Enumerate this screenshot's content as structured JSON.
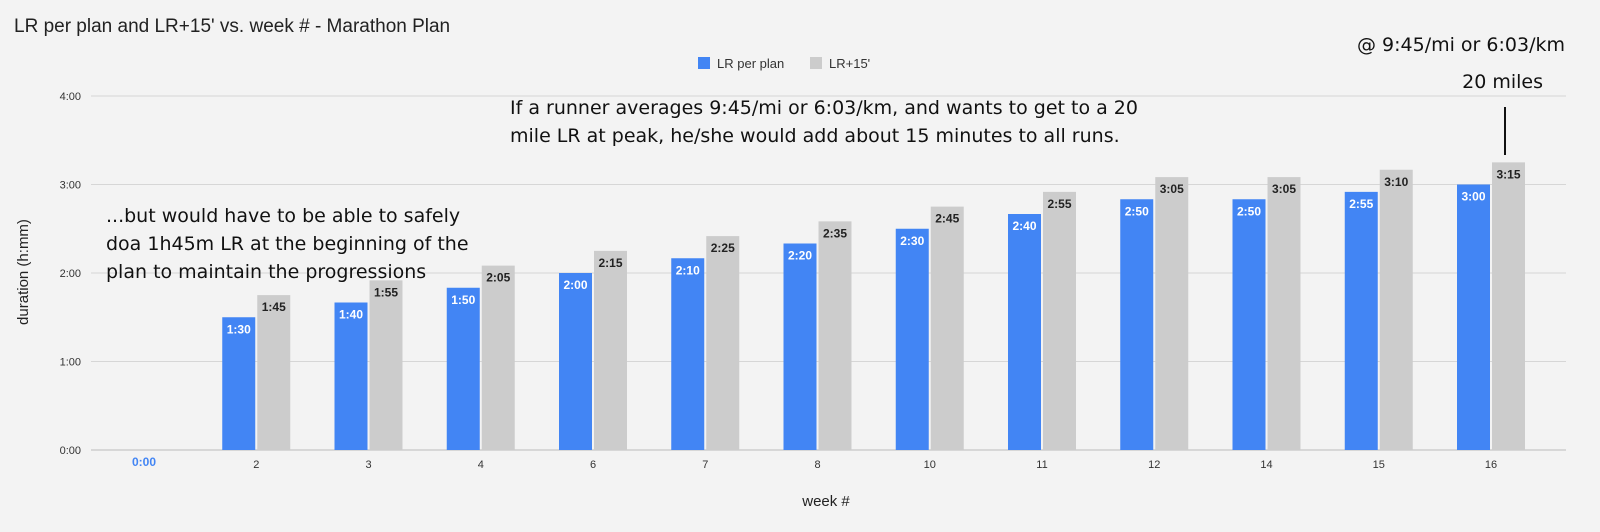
{
  "chart_data": {
    "type": "bar",
    "title": "LR per plan and LR+15'  vs. week #  -  Marathon Plan",
    "xlabel": "week #",
    "ylabel": "duration (h:mm)",
    "categories": [
      "",
      "2",
      "3",
      "4",
      "6",
      "7",
      "8",
      "10",
      "11",
      "12",
      "14",
      "15",
      "16"
    ],
    "ylim": [
      0,
      240
    ],
    "yticks": [
      {
        "value": 0,
        "label": "0:00"
      },
      {
        "value": 60,
        "label": "1:00"
      },
      {
        "value": 120,
        "label": "2:00"
      },
      {
        "value": 180,
        "label": "3:00"
      },
      {
        "value": 240,
        "label": "4:00"
      }
    ],
    "grid": true,
    "legend_position": "top-center",
    "series": [
      {
        "name": "LR per plan",
        "color": "#4285f4",
        "values": [
          0,
          90,
          100,
          110,
          120,
          130,
          140,
          150,
          160,
          170,
          170,
          175,
          180
        ],
        "labels": [
          "0:00",
          "1:30",
          "1:40",
          "1:50",
          "2:00",
          "2:10",
          "2:20",
          "2:30",
          "2:40",
          "2:50",
          "2:50",
          "2:55",
          "3:00"
        ]
      },
      {
        "name": "LR+15'",
        "color": "#cccccc",
        "values": [
          null,
          105,
          115,
          125,
          135,
          145,
          155,
          165,
          175,
          185,
          185,
          190,
          195
        ],
        "labels": [
          "",
          "1:45",
          "1:55",
          "2:05",
          "2:15",
          "2:25",
          "2:35",
          "2:45",
          "2:55",
          "3:05",
          "3:05",
          "3:10",
          "3:15"
        ]
      }
    ],
    "annotations": [
      "If a runner averages 9:45/mi or 6:03/km, and wants to get to a 20 mile LR at peak, he/she would add about 15 minutes to all runs.",
      "...but would have to be able to safely doa 1h45m LR at the beginning of the plan to maintain the progressions",
      "@ 9:45/mi or 6:03/km",
      "20 miles"
    ]
  }
}
